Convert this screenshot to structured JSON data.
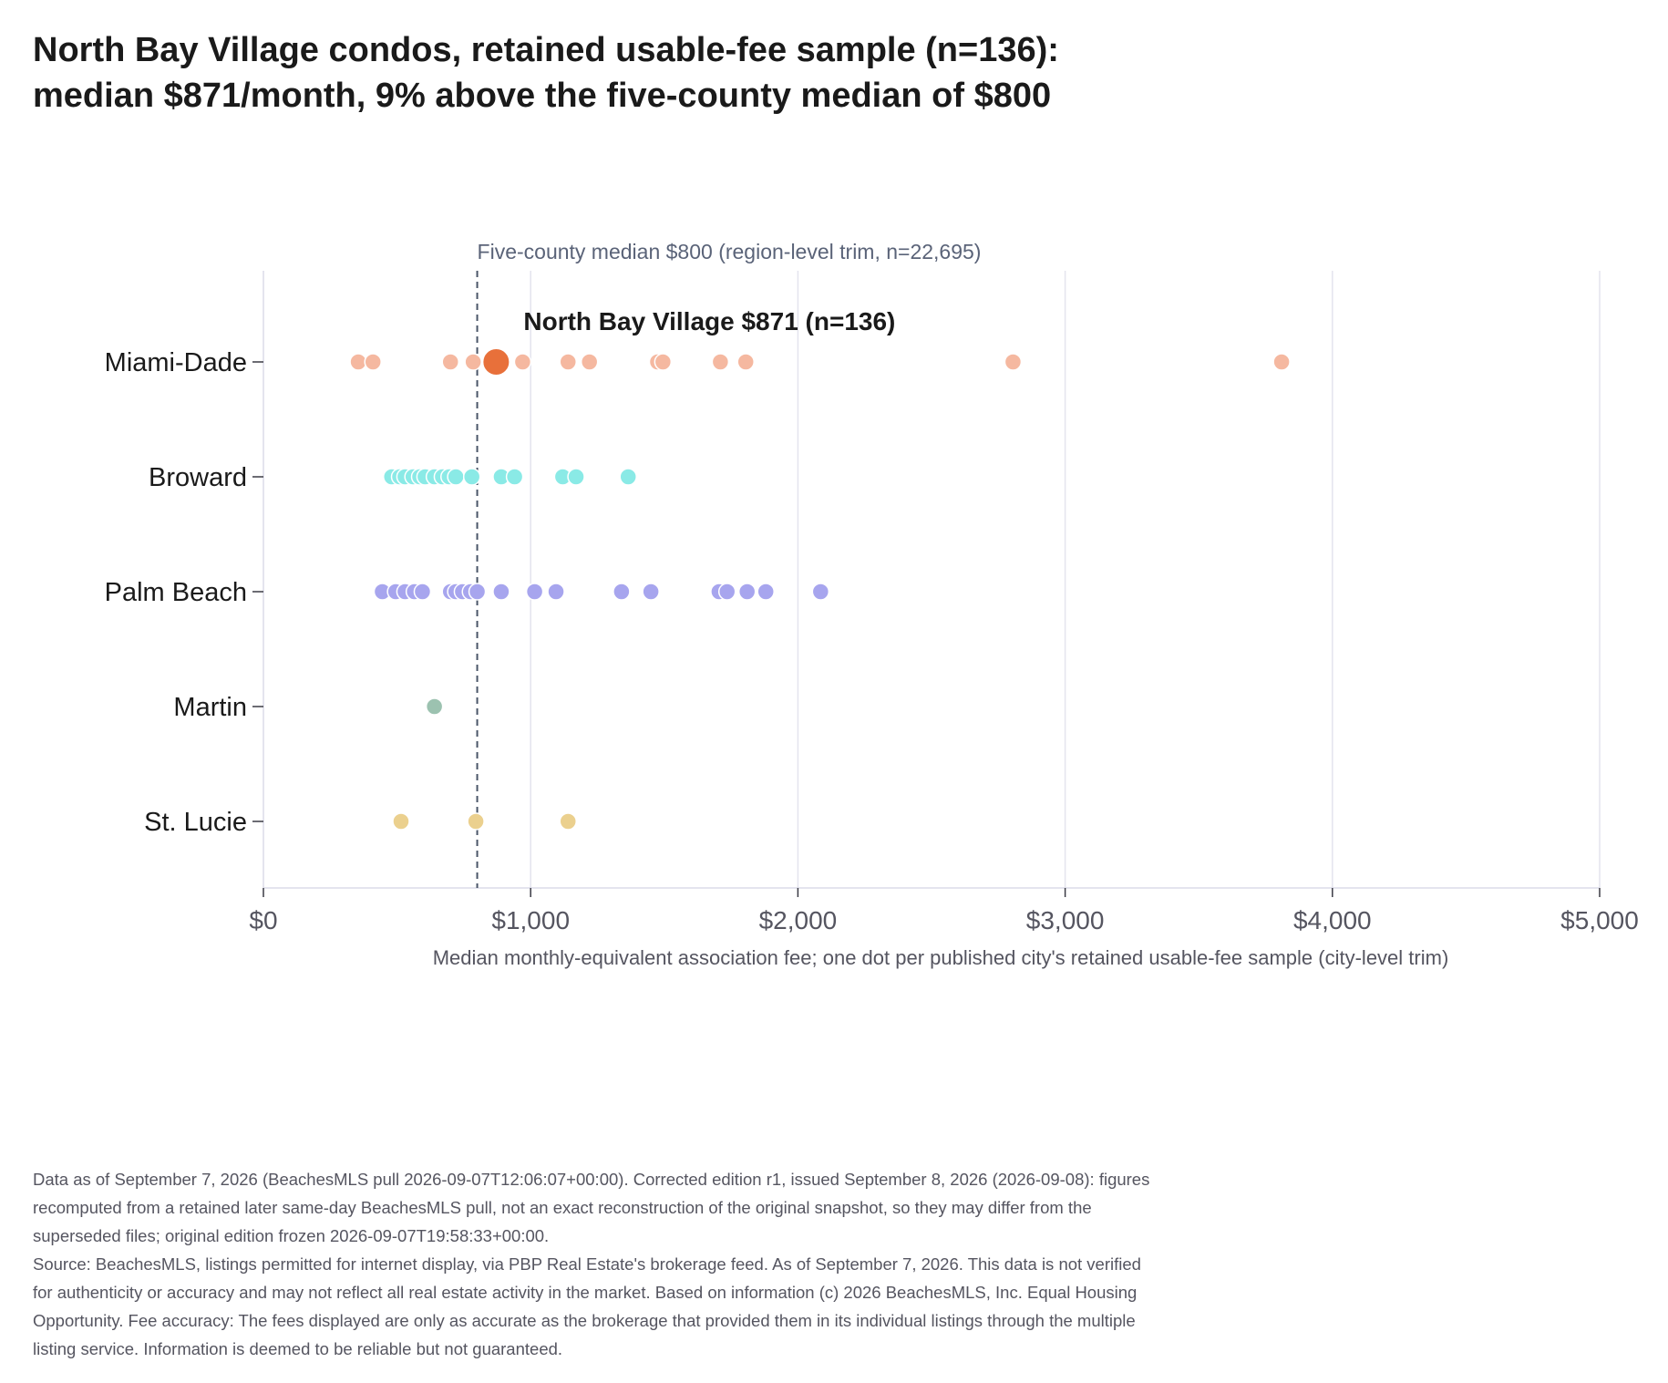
{
  "title_lines": [
    "North Bay Village condos, retained usable-fee sample (n=136):",
    "median $871/month, 9% above the five-county median of $800"
  ],
  "chart_data": {
    "type": "scatter",
    "title": "North Bay Village condos, retained usable-fee sample (n=136): median $871/month, 9% above the five-county median of $800",
    "xlabel": "Median monthly-equivalent association fee; one dot per published city's retained usable-fee sample (city-level trim)",
    "ylabel": "",
    "xlim": [
      0,
      5000
    ],
    "x_ticks": [
      0,
      1000,
      2000,
      3000,
      4000,
      5000
    ],
    "x_tick_labels": [
      "$0",
      "$1,000",
      "$2,000",
      "$3,000",
      "$4,000",
      "$5,000"
    ],
    "categories": [
      "Miami-Dade",
      "Broward",
      "Palm Beach",
      "Martin",
      "St. Lucie"
    ],
    "grid": "vertical",
    "series": [
      {
        "name": "Miami-Dade",
        "color": "#f5b8a0",
        "values": [
          355,
          410,
          700,
          785,
          970,
          1140,
          1220,
          1475,
          1495,
          1710,
          1805,
          2805,
          3810
        ]
      },
      {
        "name": "Broward",
        "color": "#8aeae6",
        "values": [
          480,
          510,
          530,
          560,
          585,
          605,
          640,
          670,
          695,
          720,
          780,
          890,
          940,
          1120,
          1170,
          1365
        ]
      },
      {
        "name": "Palm Beach",
        "color": "#a7a5ee",
        "values": [
          445,
          495,
          530,
          565,
          595,
          700,
          720,
          745,
          775,
          800,
          890,
          1015,
          1095,
          1340,
          1450,
          1705,
          1735,
          1810,
          1880,
          2085
        ]
      },
      {
        "name": "Martin",
        "color": "#9cc2b0",
        "values": [
          640
        ]
      },
      {
        "name": "St. Lucie",
        "color": "#ebd08e",
        "values": [
          515,
          795,
          1140
        ]
      }
    ],
    "highlight": {
      "category": "Miami-Dade",
      "value": 871,
      "color": "#e8703a",
      "label": "North Bay Village $871 (n=136)"
    },
    "reference_line": {
      "value": 800,
      "label": "Five-county median $800 (region-level trim, n=22,695)",
      "color": "#4a5568"
    }
  },
  "footnotes": [
    "Data as of September 7, 2026 (BeachesMLS pull 2026-09-07T12:06:07+00:00). Corrected edition r1, issued September 8, 2026 (2026-09-08): figures",
    "recomputed from a retained later same-day BeachesMLS pull, not an exact reconstruction of the original snapshot, so they may differ from the",
    "superseded files; original edition frozen 2026-09-07T19:58:33+00:00.",
    "Source: BeachesMLS, listings permitted for internet display, via PBP Real Estate's brokerage feed. As of September 7, 2026. This data is not verified",
    "for authenticity or accuracy and may not reflect all real estate activity in the market. Based on information (c) 2026 BeachesMLS, Inc. Equal Housing",
    "Opportunity. Fee accuracy: The fees displayed are only as accurate as the brokerage that provided them in its individual listings through the multiple",
    "listing service. Information is deemed to be reliable but not guaranteed."
  ]
}
